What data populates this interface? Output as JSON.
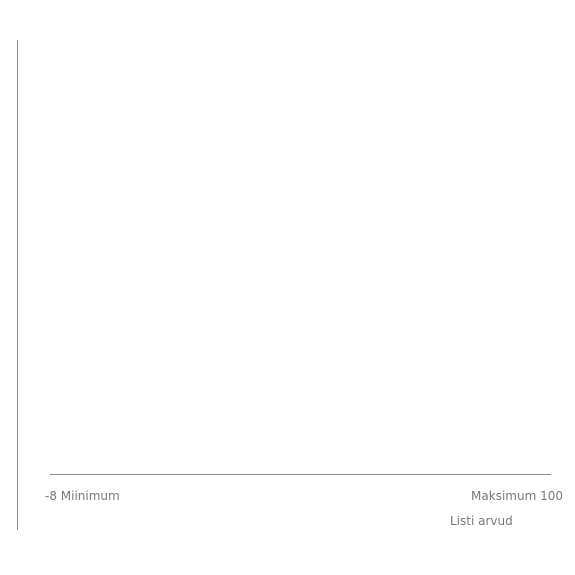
{
  "range_slider": {
    "min_label": "-8 Miinimum",
    "max_label": "Maksimum 100",
    "caption": "Listi arvud"
  }
}
